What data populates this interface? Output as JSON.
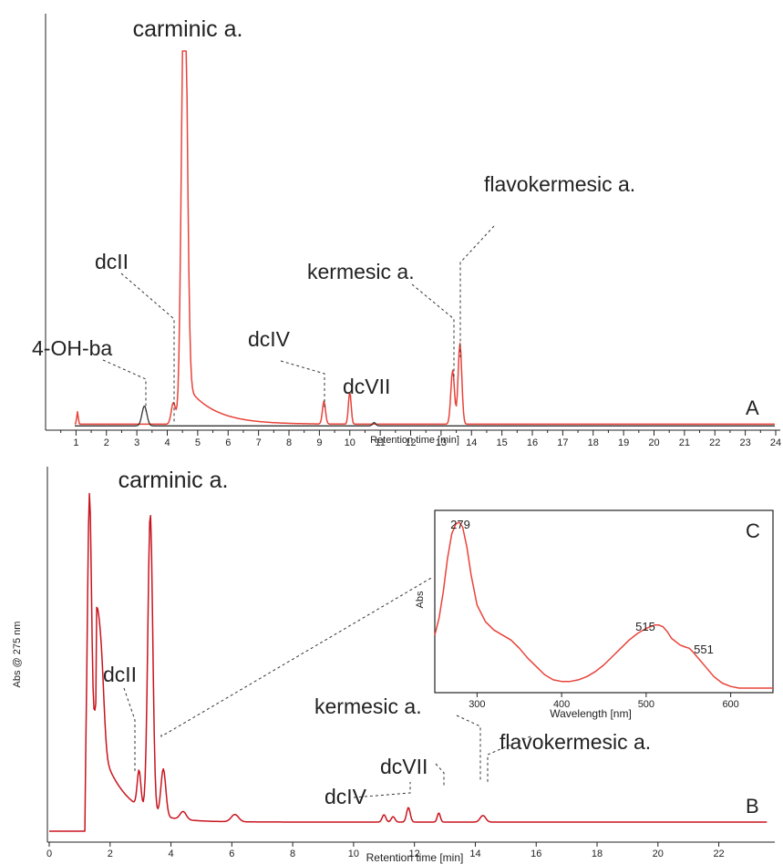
{
  "chart_data": [
    {
      "panel": "A",
      "type": "line",
      "panel_label": "A",
      "xlabel": "Retention time [min]",
      "ylabel": "",
      "xlim": [
        0,
        24
      ],
      "xticks": [
        1,
        2,
        3,
        4,
        5,
        6,
        7,
        8,
        9,
        10,
        11,
        12,
        13,
        14,
        15,
        16,
        17,
        18,
        19,
        20,
        21,
        22,
        23,
        24
      ],
      "grid": false,
      "legend": "none",
      "series": [
        {
          "color": "#e8433a",
          "baseline": 0.01,
          "tail": {
            "x": 4.56,
            "amp": 0.1,
            "tau": 0.9
          },
          "peaks": [
            {
              "x": 1.05,
              "h": 0.03,
              "w": 0.025
            },
            {
              "x": 4.2,
              "h": 0.052,
              "w": 0.07
            },
            {
              "x": 4.56,
              "h": 1.15,
              "w": 0.09
            },
            {
              "x": 9.15,
              "h": 0.055,
              "w": 0.05
            },
            {
              "x": 10.0,
              "h": 0.078,
              "w": 0.045
            },
            {
              "x": 13.38,
              "h": 0.13,
              "w": 0.06
            },
            {
              "x": 13.62,
              "h": 0.195,
              "w": 0.06
            }
          ]
        },
        {
          "color": "#333333",
          "baseline": 0.006,
          "peaks": [
            {
              "x": 3.25,
              "h": 0.048,
              "w": 0.08
            },
            {
              "x": 10.8,
              "h": 0.008,
              "w": 0.05
            }
          ]
        }
      ],
      "annotations": [
        {
          "text": "carminic a.",
          "x": 4.56
        },
        {
          "text": "dcII",
          "x": 4.15
        },
        {
          "text": "4-OH-ba",
          "x": 3.25
        },
        {
          "text": "dcIV",
          "x": 9.15
        },
        {
          "text": "dcVII",
          "x": 10.0
        },
        {
          "text": "kermesic a.",
          "x": 13.38
        },
        {
          "text": "flavokermesic a.",
          "x": 13.62
        }
      ]
    },
    {
      "panel": "B",
      "type": "line",
      "panel_label": "B",
      "xlabel": "Retention time [min]",
      "ylabel": "Abs @ 275 nm",
      "xlim": [
        0,
        23.6
      ],
      "xticks": [
        0,
        2,
        4,
        6,
        8,
        10,
        12,
        14,
        16,
        18,
        20,
        22
      ],
      "grid": false,
      "legend": "none",
      "series": [
        {
          "color": "#c8141e",
          "baseline": 0.025,
          "tail": {
            "x": 1.55,
            "amp": 0.25,
            "tau": 0.8
          },
          "peaks": [
            {
              "x": 1.32,
              "h": 0.88,
              "w": 0.07
            },
            {
              "x": 1.55,
              "h": 0.3,
              "w": 0.1
            },
            {
              "x": 1.72,
              "h": 0.2,
              "w": 0.09
            },
            {
              "x": 2.95,
              "h": 0.1,
              "w": 0.06
            },
            {
              "x": 3.32,
              "h": 0.82,
              "w": 0.08
            },
            {
              "x": 3.75,
              "h": 0.13,
              "w": 0.08
            },
            {
              "x": 4.4,
              "h": 0.022,
              "w": 0.1
            },
            {
              "x": 6.1,
              "h": 0.02,
              "w": 0.12
            },
            {
              "x": 11.0,
              "h": 0.02,
              "w": 0.06
            },
            {
              "x": 11.3,
              "h": 0.015,
              "w": 0.06
            },
            {
              "x": 11.8,
              "h": 0.04,
              "w": 0.06
            },
            {
              "x": 12.8,
              "h": 0.025,
              "w": 0.05
            },
            {
              "x": 14.25,
              "h": 0.018,
              "w": 0.09
            }
          ]
        }
      ],
      "annotations": [
        {
          "text": "carminic a.",
          "x": 3.32
        },
        {
          "text": "dcII",
          "x": 2.95
        },
        {
          "text": "dcIV",
          "x": 11.8
        },
        {
          "text": "dcVII",
          "x": 12.8
        },
        {
          "text": "kermesic a.",
          "x": 14.1
        },
        {
          "text": "flavokermesic a.",
          "x": 14.25
        }
      ]
    },
    {
      "panel": "C",
      "type": "line",
      "panel_label": "C",
      "xlabel": "Wavelength [nm]",
      "ylabel": "Abs",
      "xlim": [
        250,
        650
      ],
      "xticks": [
        300,
        400,
        500,
        600
      ],
      "grid": false,
      "legend": "none",
      "series": [
        {
          "color": "#e8433a",
          "x": [
            250,
            255,
            260,
            265,
            270,
            275,
            279,
            283,
            288,
            293,
            300,
            310,
            320,
            330,
            340,
            350,
            360,
            370,
            380,
            390,
            400,
            410,
            420,
            430,
            440,
            450,
            460,
            470,
            480,
            490,
            500,
            505,
            510,
            515,
            520,
            525,
            530,
            540,
            545,
            551,
            555,
            560,
            570,
            580,
            590,
            600,
            610,
            620,
            630,
            640,
            650
          ],
          "y": [
            0.32,
            0.42,
            0.58,
            0.78,
            0.93,
            0.99,
            1.0,
            0.97,
            0.85,
            0.68,
            0.5,
            0.4,
            0.35,
            0.32,
            0.29,
            0.24,
            0.18,
            0.13,
            0.08,
            0.05,
            0.04,
            0.04,
            0.05,
            0.07,
            0.1,
            0.14,
            0.19,
            0.24,
            0.29,
            0.33,
            0.36,
            0.37,
            0.38,
            0.38,
            0.37,
            0.34,
            0.3,
            0.26,
            0.25,
            0.24,
            0.22,
            0.19,
            0.13,
            0.07,
            0.03,
            0.01,
            0.0,
            0.0,
            0.0,
            0.0,
            0.0
          ]
        }
      ],
      "annotations": [
        {
          "text": "279",
          "x": 279
        },
        {
          "text": "515",
          "x": 515
        },
        {
          "text": "551",
          "x": 551
        }
      ]
    }
  ]
}
